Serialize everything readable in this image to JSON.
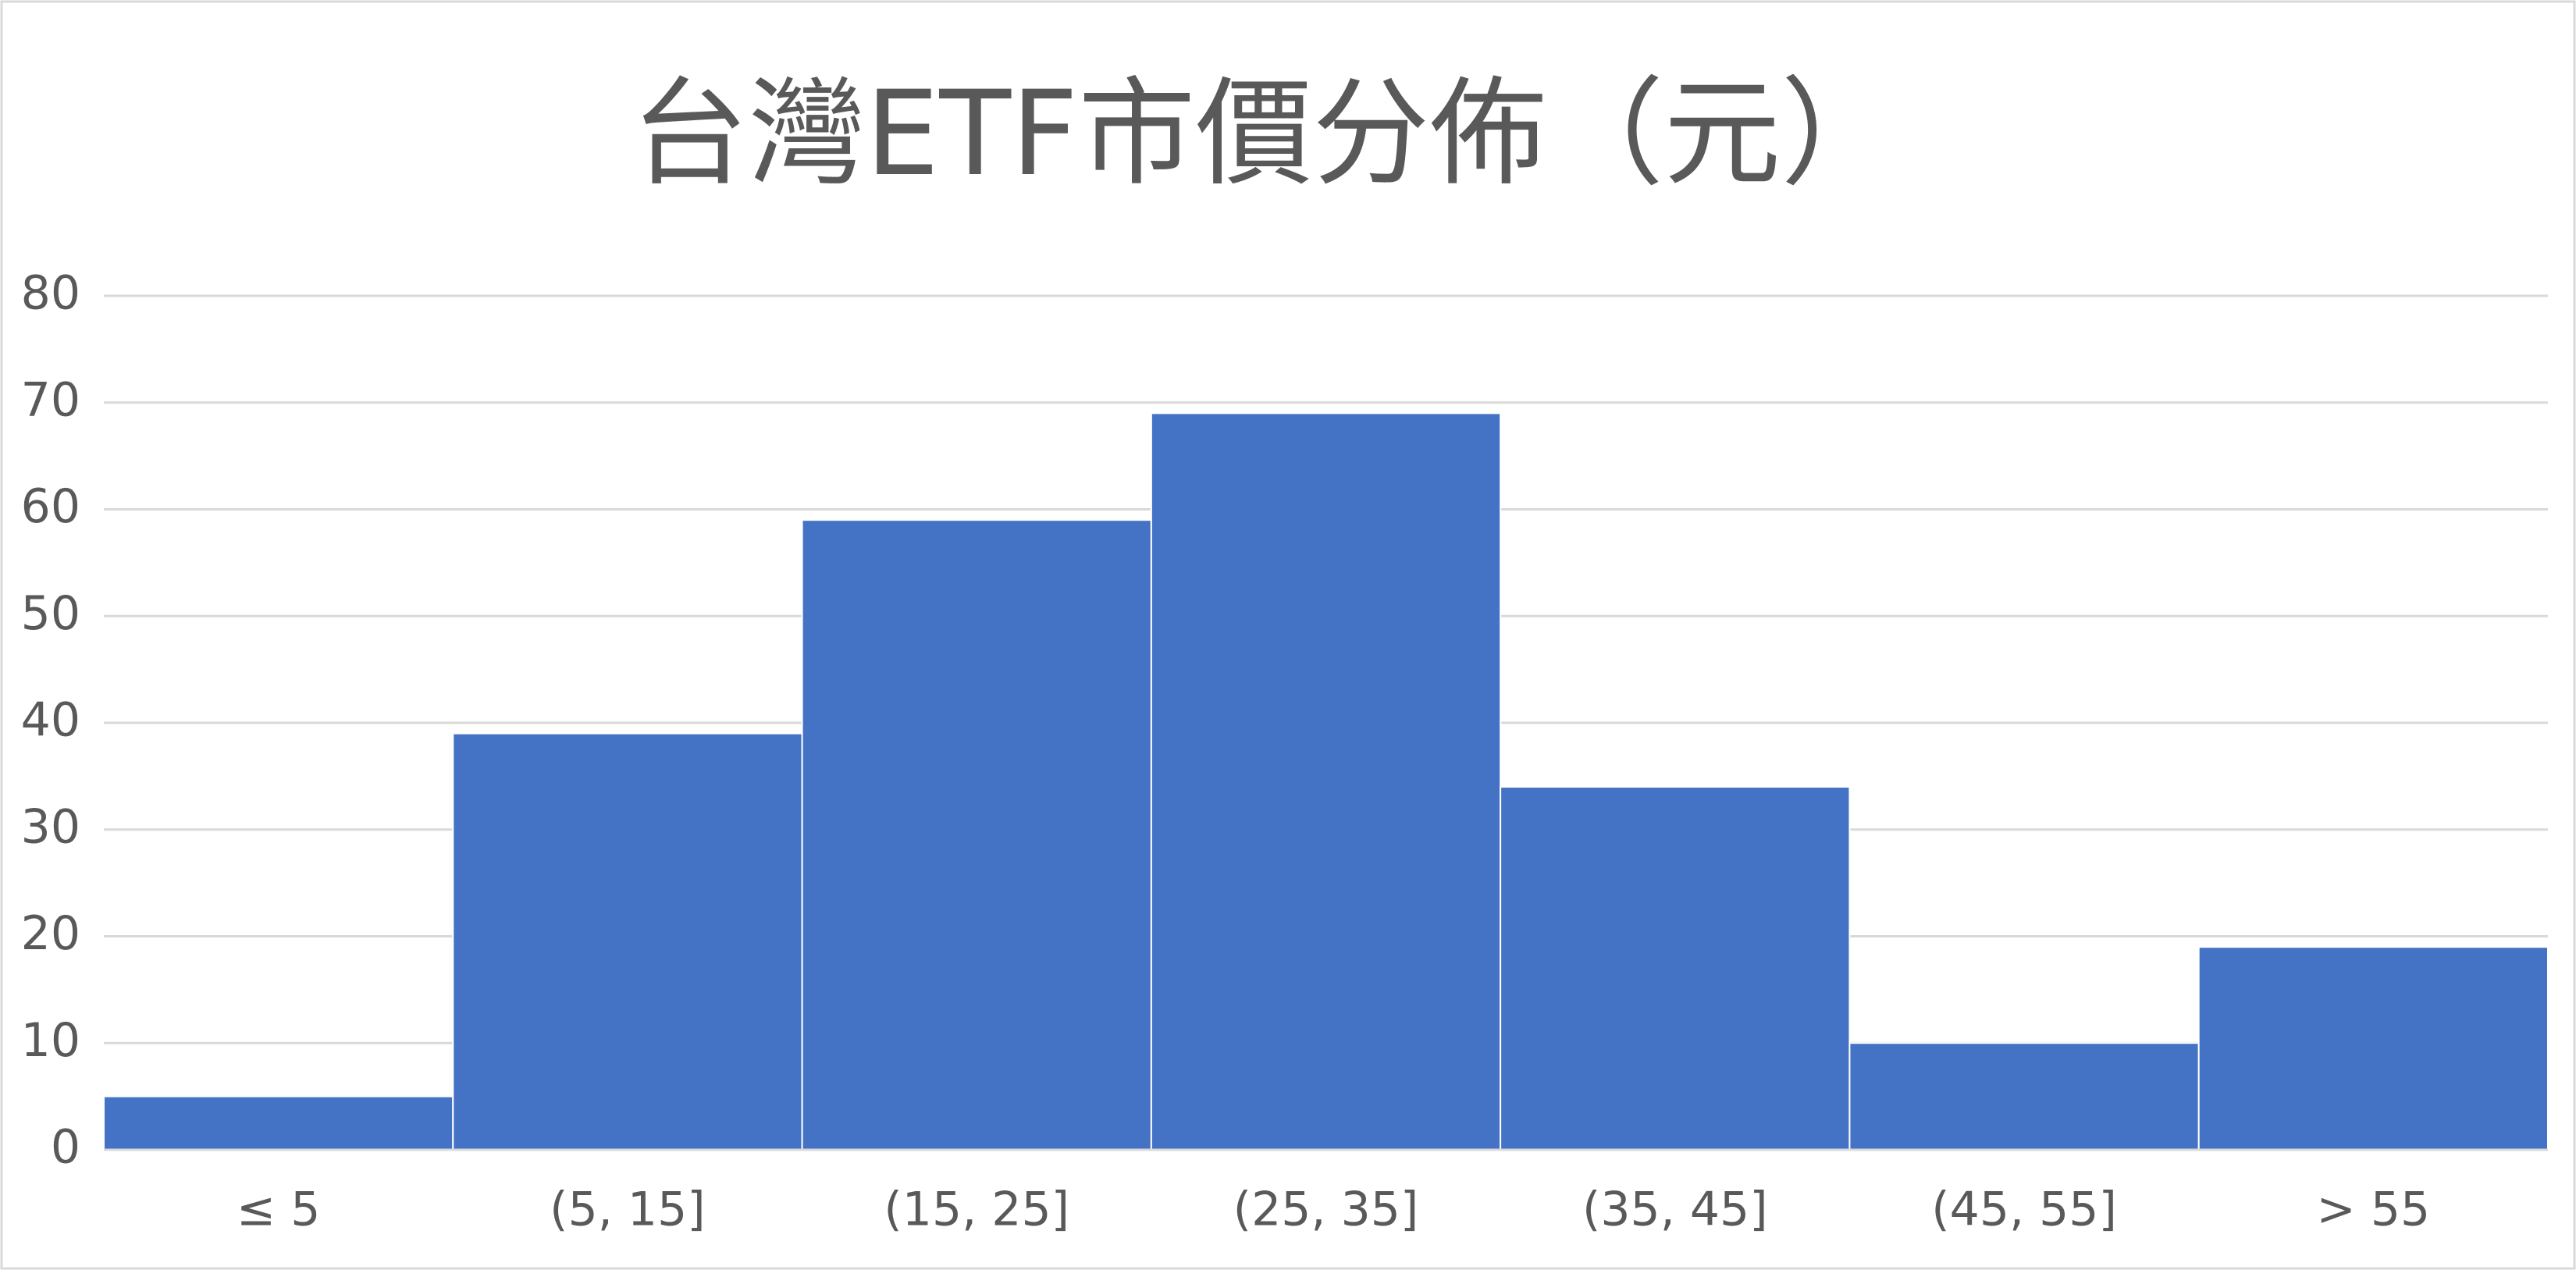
{
  "chart_data": {
    "type": "bar",
    "title": "台灣ETF市價分佈（元）",
    "categories": [
      "≤ 5",
      "(5, 15]",
      "(15, 25]",
      "(25, 35]",
      "(35, 45]",
      "(45, 55]",
      "> 55"
    ],
    "values": [
      5,
      39,
      59,
      69,
      34,
      10,
      19
    ],
    "color": "#4472c4",
    "ylim": [
      0,
      80
    ],
    "yticks": [
      0,
      10,
      20,
      30,
      40,
      50,
      60,
      70,
      80
    ],
    "grid": true
  }
}
